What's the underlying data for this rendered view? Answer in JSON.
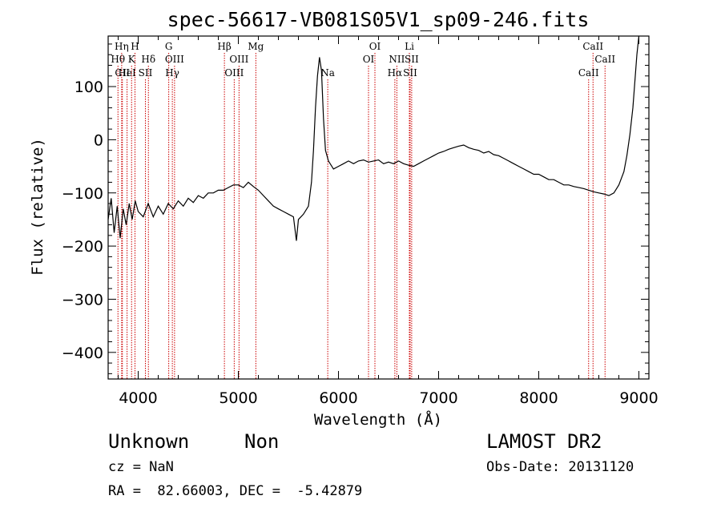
{
  "chart_data": {
    "type": "line",
    "title": "spec-56617-VB081S05V1_sp09-246.fits",
    "xlabel": "Wavelength (Å)",
    "ylabel": "Flux (relative)",
    "xlim": [
      3700,
      9100
    ],
    "ylim": [
      -450,
      195
    ],
    "xticks": [
      4000,
      5000,
      6000,
      7000,
      8000,
      9000
    ],
    "yticks": [
      -400,
      -300,
      -200,
      -100,
      0,
      100
    ],
    "grid": false,
    "series": [
      {
        "color": "#000000",
        "points": [
          [
            3700,
            -150
          ],
          [
            3730,
            -110
          ],
          [
            3760,
            -175
          ],
          [
            3790,
            -125
          ],
          [
            3820,
            -185
          ],
          [
            3850,
            -130
          ],
          [
            3880,
            -160
          ],
          [
            3910,
            -120
          ],
          [
            3940,
            -150
          ],
          [
            3970,
            -115
          ],
          [
            4000,
            -135
          ],
          [
            4050,
            -145
          ],
          [
            4100,
            -120
          ],
          [
            4150,
            -145
          ],
          [
            4200,
            -125
          ],
          [
            4250,
            -140
          ],
          [
            4300,
            -120
          ],
          [
            4350,
            -130
          ],
          [
            4400,
            -115
          ],
          [
            4450,
            -125
          ],
          [
            4500,
            -110
          ],
          [
            4550,
            -118
          ],
          [
            4600,
            -105
          ],
          [
            4650,
            -110
          ],
          [
            4700,
            -100
          ],
          [
            4750,
            -100
          ],
          [
            4800,
            -95
          ],
          [
            4850,
            -95
          ],
          [
            4900,
            -90
          ],
          [
            4950,
            -85
          ],
          [
            5000,
            -85
          ],
          [
            5050,
            -90
          ],
          [
            5100,
            -80
          ],
          [
            5150,
            -88
          ],
          [
            5200,
            -95
          ],
          [
            5250,
            -105
          ],
          [
            5300,
            -115
          ],
          [
            5350,
            -125
          ],
          [
            5400,
            -130
          ],
          [
            5450,
            -135
          ],
          [
            5500,
            -140
          ],
          [
            5550,
            -145
          ],
          [
            5580,
            -190
          ],
          [
            5600,
            -150
          ],
          [
            5650,
            -140
          ],
          [
            5700,
            -125
          ],
          [
            5730,
            -80
          ],
          [
            5750,
            -20
          ],
          [
            5770,
            60
          ],
          [
            5790,
            120
          ],
          [
            5810,
            155
          ],
          [
            5830,
            130
          ],
          [
            5850,
            40
          ],
          [
            5870,
            -20
          ],
          [
            5900,
            -40
          ],
          [
            5950,
            -55
          ],
          [
            6000,
            -50
          ],
          [
            6050,
            -45
          ],
          [
            6100,
            -40
          ],
          [
            6150,
            -45
          ],
          [
            6200,
            -40
          ],
          [
            6250,
            -38
          ],
          [
            6300,
            -42
          ],
          [
            6350,
            -40
          ],
          [
            6400,
            -38
          ],
          [
            6450,
            -45
          ],
          [
            6500,
            -42
          ],
          [
            6550,
            -45
          ],
          [
            6600,
            -40
          ],
          [
            6650,
            -45
          ],
          [
            6700,
            -48
          ],
          [
            6750,
            -50
          ],
          [
            6800,
            -45
          ],
          [
            6850,
            -40
          ],
          [
            6900,
            -35
          ],
          [
            6950,
            -30
          ],
          [
            7000,
            -25
          ],
          [
            7050,
            -22
          ],
          [
            7100,
            -18
          ],
          [
            7150,
            -15
          ],
          [
            7200,
            -12
          ],
          [
            7250,
            -10
          ],
          [
            7300,
            -15
          ],
          [
            7350,
            -18
          ],
          [
            7400,
            -20
          ],
          [
            7450,
            -25
          ],
          [
            7500,
            -22
          ],
          [
            7550,
            -28
          ],
          [
            7600,
            -30
          ],
          [
            7650,
            -35
          ],
          [
            7700,
            -40
          ],
          [
            7750,
            -45
          ],
          [
            7800,
            -50
          ],
          [
            7850,
            -55
          ],
          [
            7900,
            -60
          ],
          [
            7950,
            -65
          ],
          [
            8000,
            -65
          ],
          [
            8050,
            -70
          ],
          [
            8100,
            -75
          ],
          [
            8150,
            -75
          ],
          [
            8200,
            -80
          ],
          [
            8250,
            -85
          ],
          [
            8300,
            -85
          ],
          [
            8350,
            -88
          ],
          [
            8400,
            -90
          ],
          [
            8450,
            -92
          ],
          [
            8500,
            -95
          ],
          [
            8550,
            -98
          ],
          [
            8600,
            -100
          ],
          [
            8650,
            -102
          ],
          [
            8700,
            -105
          ],
          [
            8750,
            -100
          ],
          [
            8800,
            -85
          ],
          [
            8850,
            -60
          ],
          [
            8880,
            -30
          ],
          [
            8910,
            10
          ],
          [
            8940,
            60
          ],
          [
            8960,
            110
          ],
          [
            8980,
            160
          ],
          [
            9000,
            195
          ]
        ]
      }
    ],
    "lines": [
      {
        "label": "CII",
        "x": 3842,
        "row": 3
      },
      {
        "label": "Hθ",
        "x": 3798,
        "row": 2
      },
      {
        "label": "Hη",
        "x": 3835,
        "row": 1
      },
      {
        "label": "HeI",
        "x": 3889,
        "row": 3
      },
      {
        "label": "H",
        "x": 3968,
        "row": 1
      },
      {
        "label": "K",
        "x": 3934,
        "row": 2
      },
      {
        "label": "SII",
        "x": 4072,
        "row": 3
      },
      {
        "label": "Hδ",
        "x": 4102,
        "row": 2
      },
      {
        "label": "G",
        "x": 4305,
        "row": 1
      },
      {
        "label": "OIII",
        "x": 4363,
        "row": 2
      },
      {
        "label": "Hγ",
        "x": 4341,
        "row": 3
      },
      {
        "label": "Hβ",
        "x": 4861,
        "row": 1
      },
      {
        "label": "OIII",
        "x": 5007,
        "row": 2
      },
      {
        "label": "OIII",
        "x": 4959,
        "row": 3
      },
      {
        "label": "Mg",
        "x": 5175,
        "row": 1
      },
      {
        "label": "Na",
        "x": 5893,
        "row": 3
      },
      {
        "label": "OI",
        "x": 6364,
        "row": 1
      },
      {
        "label": "OI",
        "x": 6300,
        "row": 2
      },
      {
        "label": "Li",
        "x": 6708,
        "row": 1
      },
      {
        "label": "NII",
        "x": 6583,
        "row": 2
      },
      {
        "label": "SII",
        "x": 6731,
        "row": 2
      },
      {
        "label": "Hα",
        "x": 6563,
        "row": 3
      },
      {
        "label": "SII",
        "x": 6716,
        "row": 3
      },
      {
        "label": "CaII",
        "x": 8542,
        "row": 1
      },
      {
        "label": "CaII",
        "x": 8662,
        "row": 2
      },
      {
        "label": "CaII",
        "x": 8498,
        "row": 3
      }
    ],
    "line_color": "#cc0000"
  },
  "info": {
    "class": "Unknown",
    "subclass": "Non",
    "survey": "LAMOST DR2",
    "cz": "cz = NaN",
    "obsdate": "Obs-Date: 20131120",
    "radec": "RA =  82.66003, DEC =  -5.42879"
  }
}
